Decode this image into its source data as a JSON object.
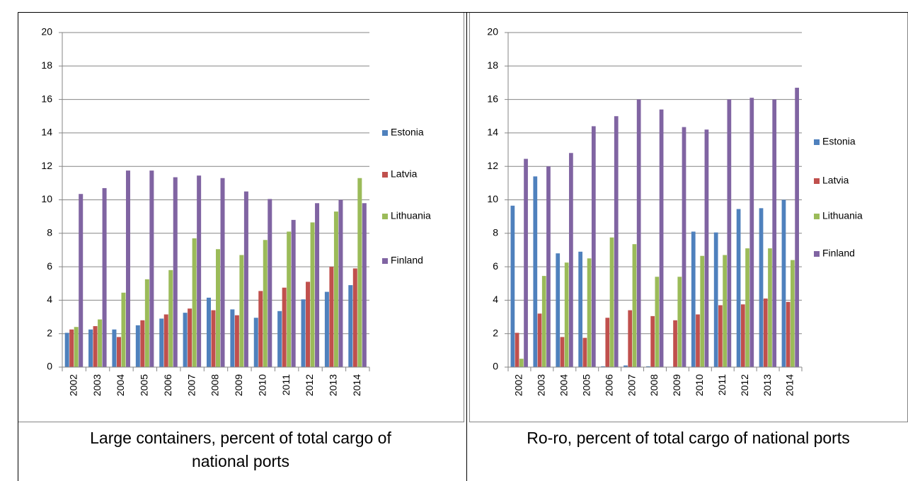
{
  "chart_data": [
    {
      "type": "bar",
      "title": "Large containers, percent of total cargo of national ports",
      "categories": [
        "2002",
        "2003",
        "2004",
        "2005",
        "2006",
        "2007",
        "2008",
        "2009",
        "2010",
        "2011",
        "2012",
        "2013",
        "2014"
      ],
      "series": [
        {
          "name": "Estonia",
          "color": "#4f81bd",
          "values": [
            2.05,
            2.25,
            2.25,
            2.5,
            2.9,
            3.25,
            4.15,
            3.45,
            2.95,
            3.35,
            4.05,
            4.5,
            4.9
          ]
        },
        {
          "name": "Latvia",
          "color": "#c0504d",
          "values": [
            2.25,
            2.45,
            1.8,
            2.8,
            3.15,
            3.5,
            3.4,
            3.1,
            4.55,
            4.75,
            5.1,
            6.0,
            5.9
          ]
        },
        {
          "name": "Lithuania",
          "color": "#9bbb59",
          "values": [
            2.4,
            2.85,
            4.45,
            5.25,
            5.8,
            7.7,
            7.05,
            6.7,
            7.6,
            8.1,
            8.65,
            9.3,
            11.3
          ]
        },
        {
          "name": "Finland",
          "color": "#8064a2",
          "values": [
            10.35,
            10.7,
            11.75,
            11.75,
            11.35,
            11.45,
            11.3,
            10.5,
            10.05,
            8.8,
            9.8,
            10.0,
            9.8
          ]
        }
      ],
      "ylim": [
        0,
        20
      ],
      "yticks": [
        0,
        2,
        4,
        6,
        8,
        10,
        12,
        14,
        16,
        18,
        20
      ],
      "grid": true,
      "legend": "right"
    },
    {
      "type": "bar",
      "title": "Ro-ro, percent of total cargo of national ports",
      "categories": [
        "2002",
        "2003",
        "2004",
        "2005",
        "2006",
        "2007",
        "2008",
        "2009",
        "2010",
        "2011",
        "2012",
        "2013",
        "2014"
      ],
      "series": [
        {
          "name": "Estonia",
          "color": "#4f81bd",
          "values": [
            9.65,
            11.4,
            6.8,
            6.9,
            0.05,
            0.1,
            0.05,
            0,
            8.1,
            8.05,
            9.45,
            9.5,
            10.0
          ]
        },
        {
          "name": "Latvia",
          "color": "#c0504d",
          "values": [
            2.05,
            3.2,
            1.8,
            1.75,
            2.95,
            3.4,
            3.05,
            2.8,
            3.15,
            3.7,
            3.75,
            4.1,
            3.9
          ]
        },
        {
          "name": "Lithuania",
          "color": "#9bbb59",
          "values": [
            0.5,
            5.45,
            6.25,
            6.5,
            7.75,
            7.35,
            5.4,
            5.4,
            6.65,
            6.7,
            7.1,
            7.1,
            6.4
          ]
        },
        {
          "name": "Finland",
          "color": "#8064a2",
          "values": [
            12.45,
            12.0,
            12.8,
            14.4,
            15.0,
            16.0,
            15.4,
            14.35,
            14.2,
            16.0,
            16.1,
            16.0,
            16.7
          ]
        }
      ],
      "ylim": [
        0,
        20
      ],
      "yticks": [
        0,
        2,
        4,
        6,
        8,
        10,
        12,
        14,
        16,
        18,
        20
      ],
      "grid": true,
      "legend": "right"
    }
  ]
}
